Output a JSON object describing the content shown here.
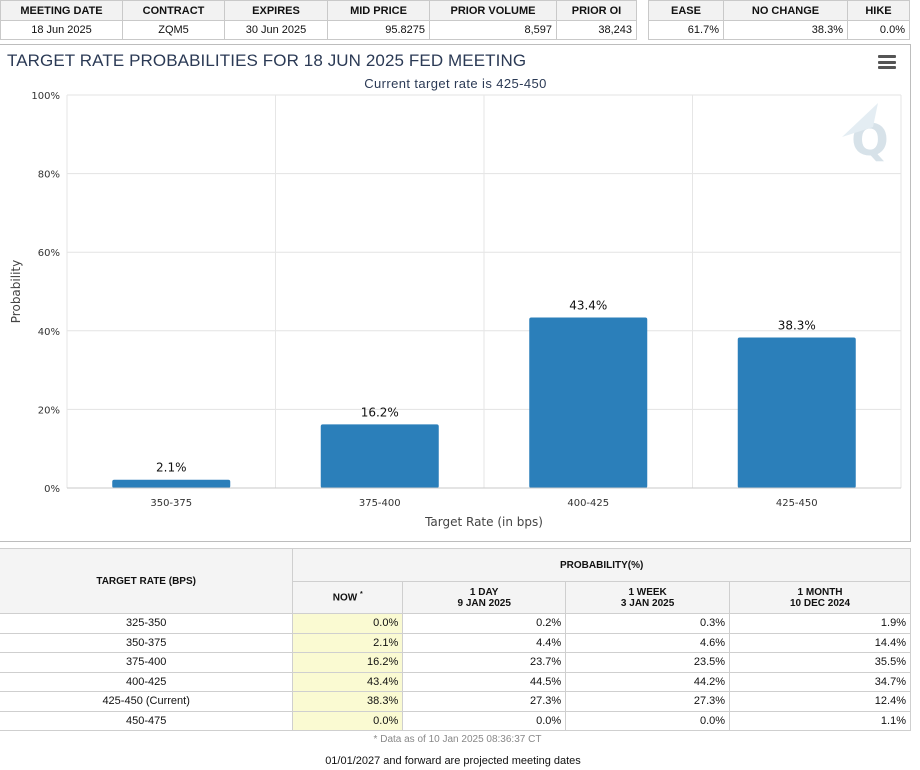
{
  "summary": {
    "headers": [
      "MEETING DATE",
      "CONTRACT",
      "EXPIRES",
      "MID PRICE",
      "PRIOR VOLUME",
      "PRIOR OI"
    ],
    "values": [
      "18 Jun 2025",
      "ZQM5",
      "30 Jun 2025",
      "95.8275",
      "8,597",
      "38,243"
    ]
  },
  "outlook": {
    "headers": [
      "EASE",
      "NO CHANGE",
      "HIKE"
    ],
    "values": [
      "61.7%",
      "38.3%",
      "0.0%"
    ]
  },
  "chart": {
    "title": "TARGET RATE PROBABILITIES FOR 18 JUN 2025 FED MEETING",
    "subtitle": "Current target rate is 425-450",
    "menu_icon": "hamburger-menu-icon",
    "watermark_icon": "quikstrike-logo-icon"
  },
  "chart_data": {
    "type": "bar",
    "title": "TARGET RATE PROBABILITIES FOR 18 JUN 2025 FED MEETING",
    "subtitle": "Current target rate is 425-450",
    "categories": [
      "350-375",
      "375-400",
      "400-425",
      "425-450"
    ],
    "values": [
      2.1,
      16.2,
      43.4,
      38.3
    ],
    "data_labels": [
      "2.1%",
      "16.2%",
      "43.4%",
      "38.3%"
    ],
    "xlabel": "Target Rate (in bps)",
    "ylabel": "Probability",
    "ylim": [
      0,
      100
    ],
    "yticks": [
      0,
      20,
      40,
      60,
      80,
      100
    ],
    "ytick_labels": [
      "0%",
      "20%",
      "40%",
      "60%",
      "80%",
      "100%"
    ],
    "bar_color": "#2b7fba",
    "grid": true,
    "legend": "none"
  },
  "probability_table": {
    "target_rate_header": "TARGET RATE (BPS)",
    "probability_header": "PROBABILITY(%)",
    "columns": [
      {
        "label": "NOW",
        "sup": "*",
        "date": ""
      },
      {
        "label": "1 DAY",
        "date": "9 JAN 2025"
      },
      {
        "label": "1 WEEK",
        "date": "3 JAN 2025"
      },
      {
        "label": "1 MONTH",
        "date": "10 DEC 2024"
      }
    ],
    "rows": [
      {
        "rate": "325-350",
        "now": "0.0%",
        "day": "0.2%",
        "week": "0.3%",
        "month": "1.9%"
      },
      {
        "rate": "350-375",
        "now": "2.1%",
        "day": "4.4%",
        "week": "4.6%",
        "month": "14.4%"
      },
      {
        "rate": "375-400",
        "now": "16.2%",
        "day": "23.7%",
        "week": "23.5%",
        "month": "35.5%"
      },
      {
        "rate": "400-425",
        "now": "43.4%",
        "day": "44.5%",
        "week": "44.2%",
        "month": "34.7%"
      },
      {
        "rate": "425-450 (Current)",
        "now": "38.3%",
        "day": "27.3%",
        "week": "27.3%",
        "month": "12.4%"
      },
      {
        "rate": "450-475",
        "now": "0.0%",
        "day": "0.0%",
        "week": "0.0%",
        "month": "1.1%"
      }
    ]
  },
  "note": "* Data as of 10 Jan 2025 08:36:37 CT",
  "footer": "01/01/2027 and forward are projected meeting dates"
}
